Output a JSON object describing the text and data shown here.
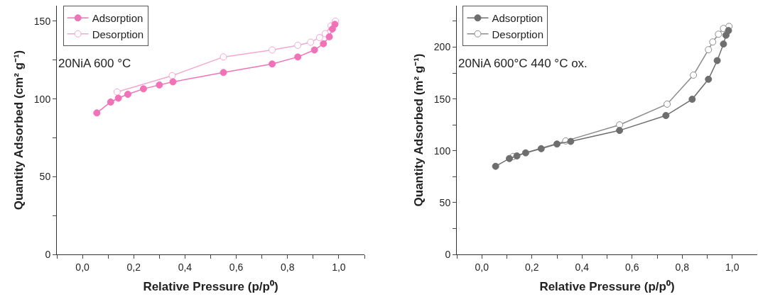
{
  "chart_data": [
    {
      "type": "line",
      "xlabel": "Relative Pressure (p/p⁰)",
      "ylabel": "Quantity Adsorbed (cm² g⁻¹)",
      "annotations": [
        "20NiA 600 °C"
      ],
      "marker": "circle",
      "line_style": "solid",
      "legend": "top left",
      "grid": false,
      "xlim": [
        -0.1,
        1.1
      ],
      "ylim": [
        0,
        160
      ],
      "xticks": [
        {
          "value": -0.1,
          "label": null
        },
        {
          "value": 0,
          "label": "0,0"
        },
        {
          "value": 0.1,
          "label": null
        },
        {
          "value": 0.2,
          "label": "0,2"
        },
        {
          "value": 0.3,
          "label": null
        },
        {
          "value": 0.4,
          "label": "0,4"
        },
        {
          "value": 0.5,
          "label": null
        },
        {
          "value": 0.6,
          "label": "0,6"
        },
        {
          "value": 0.7,
          "label": null
        },
        {
          "value": 0.8,
          "label": "0,8"
        },
        {
          "value": 0.9,
          "label": null
        },
        {
          "value": 1.0,
          "label": "1,0"
        },
        {
          "value": 1.1,
          "label": null
        }
      ],
      "yticks": [
        0,
        {
          "value": 25,
          "label": null
        },
        50,
        {
          "value": 75,
          "label": null
        },
        100,
        {
          "value": 125,
          "label": null
        },
        150
      ],
      "series": [
        {
          "name": "Adsorption",
          "color": "#f272b8",
          "x": [
            0.056,
            0.11,
            0.14,
            0.177,
            0.238,
            0.3,
            0.353,
            0.55,
            0.74,
            0.84,
            0.905,
            0.94,
            0.963,
            0.975,
            0.985
          ],
          "values": [
            91,
            98,
            100.5,
            103,
            106.5,
            109,
            111,
            117,
            122.5,
            127,
            131.5,
            135.5,
            140,
            145,
            148
          ]
        },
        {
          "name": "Desorption",
          "color": "#f5a6d2",
          "x": [
            0.987,
            0.97,
            0.947,
            0.925,
            0.89,
            0.84,
            0.74,
            0.55,
            0.35,
            0.135
          ],
          "values": [
            150,
            147,
            142,
            139.5,
            136.5,
            134.5,
            131.5,
            127,
            115,
            104.5
          ]
        }
      ]
    },
    {
      "type": "line",
      "xlabel": "Relative Pressure (p/p⁰)",
      "ylabel": "Quantity Adsorbed (m² g⁻¹)",
      "annotations": [
        "20NiA 600°C 440 °C ox."
      ],
      "marker": "circle",
      "line_style": "solid",
      "legend": "top left",
      "grid": false,
      "xlim": [
        -0.1,
        1.1
      ],
      "ylim": [
        0,
        240
      ],
      "xticks": [
        {
          "value": -0.1,
          "label": null
        },
        {
          "value": 0,
          "label": "0,0"
        },
        {
          "value": 0.1,
          "label": null
        },
        {
          "value": 0.2,
          "label": "0,2"
        },
        {
          "value": 0.3,
          "label": null
        },
        {
          "value": 0.4,
          "label": "0,4"
        },
        {
          "value": 0.5,
          "label": null
        },
        {
          "value": 0.6,
          "label": "0,6"
        },
        {
          "value": 0.7,
          "label": null
        },
        {
          "value": 0.8,
          "label": "0,8"
        },
        {
          "value": 0.9,
          "label": null
        },
        {
          "value": 1.0,
          "label": "1,0"
        },
        {
          "value": 1.1,
          "label": null
        }
      ],
      "yticks": [
        0,
        {
          "value": 25,
          "label": null
        },
        50,
        {
          "value": 75,
          "label": null
        },
        100,
        {
          "value": 125,
          "label": null
        },
        150,
        {
          "value": 175,
          "label": null
        },
        200,
        {
          "value": 225,
          "label": null
        }
      ],
      "series": [
        {
          "name": "Adsorption",
          "color": "#6e6e6e",
          "x": [
            0.055,
            0.11,
            0.14,
            0.175,
            0.237,
            0.3,
            0.355,
            0.55,
            0.735,
            0.84,
            0.905,
            0.94,
            0.965,
            0.975,
            0.985
          ],
          "values": [
            85,
            92.5,
            95,
            98,
            102,
            106.5,
            109,
            119.6,
            134,
            149.7,
            169,
            187,
            203,
            211.5,
            216
          ]
        },
        {
          "name": "Desorption",
          "color": "#8c8c8c",
          "x": [
            0.987,
            0.965,
            0.945,
            0.922,
            0.905,
            0.845,
            0.74,
            0.55,
            0.335,
            0.125
          ],
          "values": [
            220,
            218,
            212.5,
            205,
            197.5,
            173,
            145,
            125,
            109.5,
            94.5
          ]
        }
      ]
    }
  ]
}
